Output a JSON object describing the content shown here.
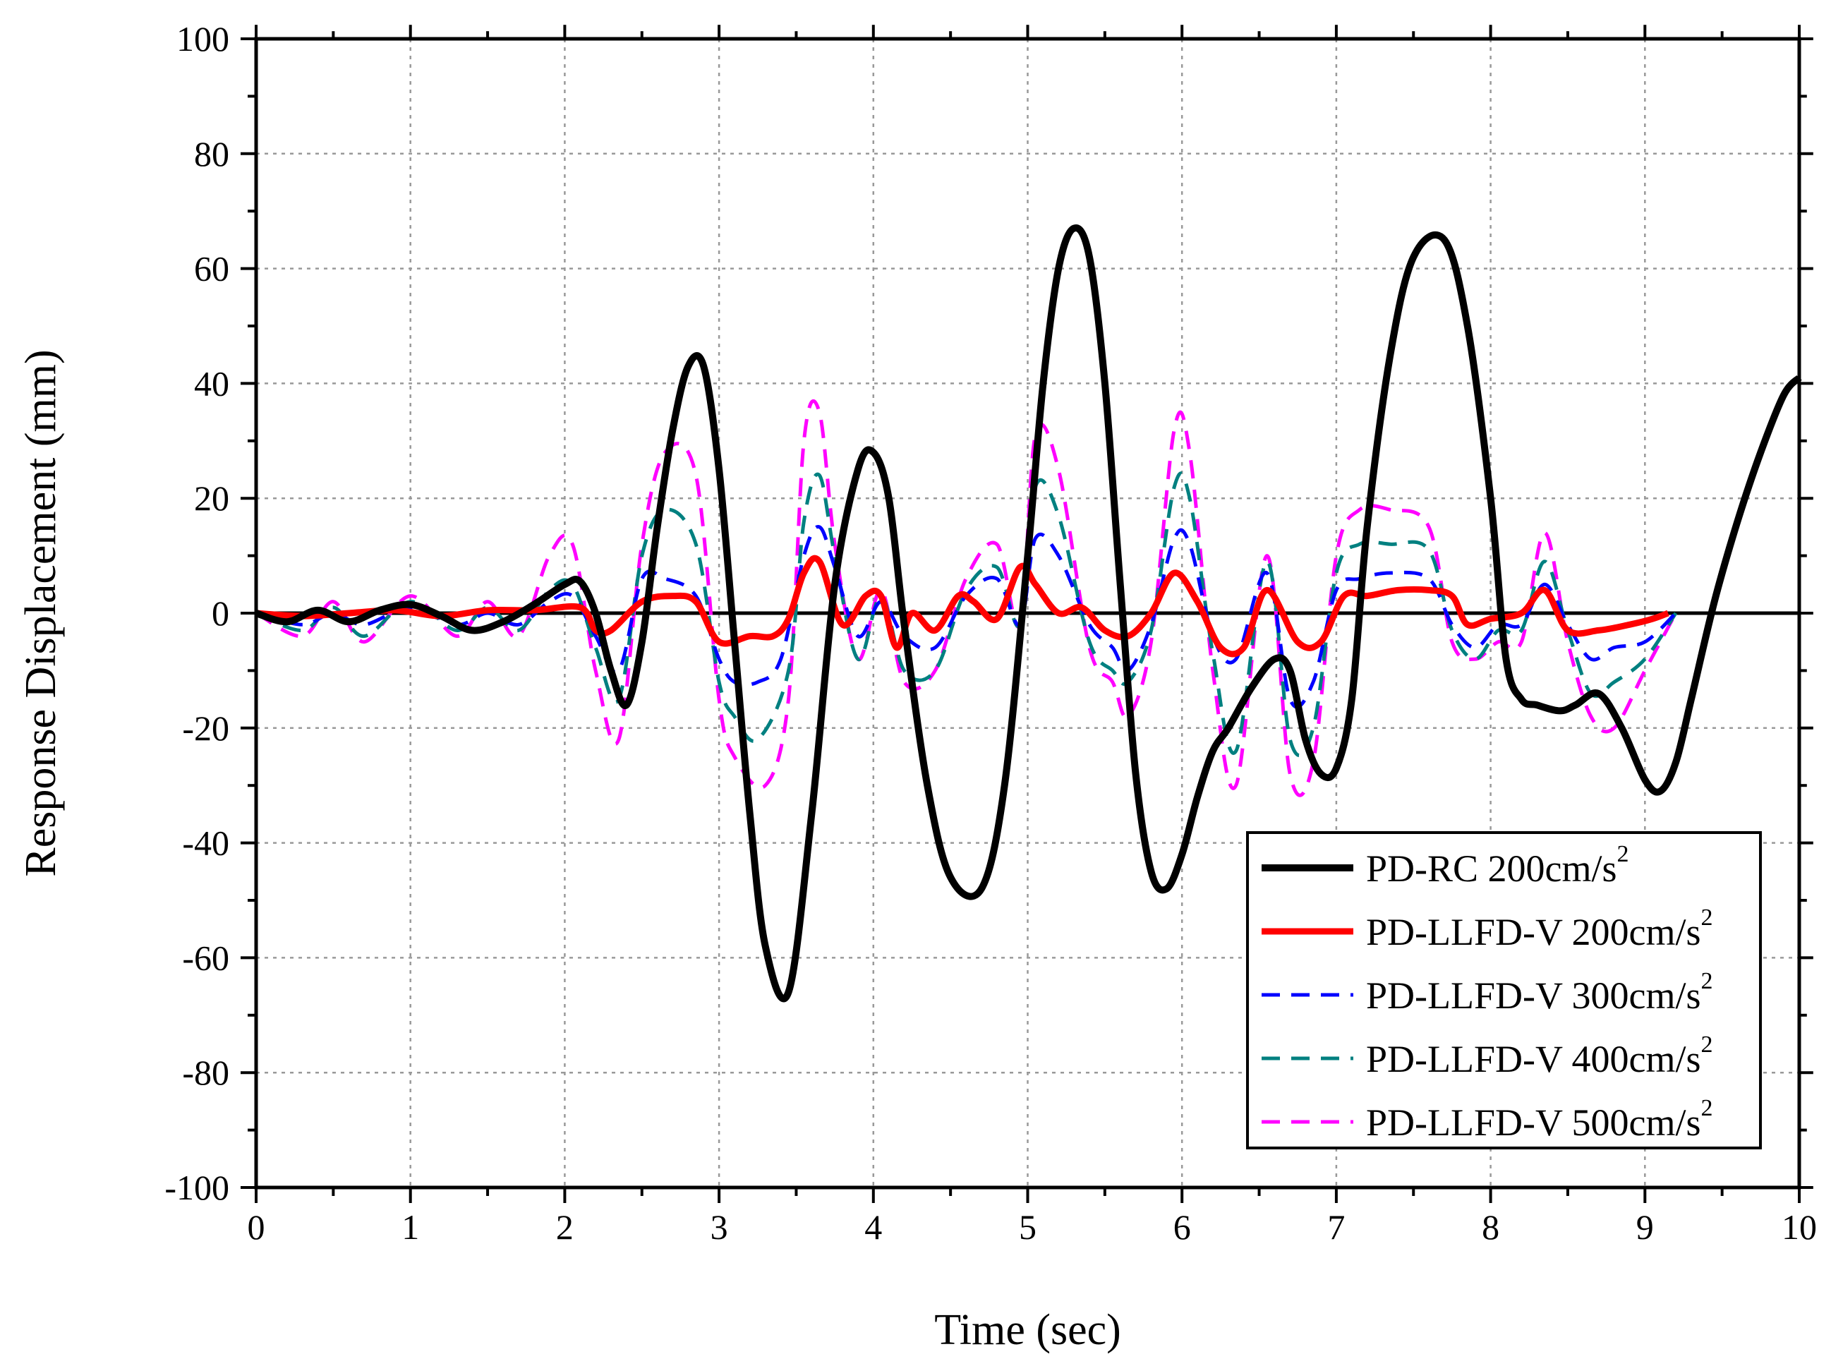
{
  "chart_data": {
    "type": "line",
    "title": "",
    "xlabel": "Time (sec)",
    "ylabel": "Response Displacement (mm)",
    "xlim": [
      0,
      10
    ],
    "ylim": [
      -100,
      100
    ],
    "xticks": [
      0,
      1,
      2,
      3,
      4,
      5,
      6,
      7,
      8,
      9,
      10
    ],
    "yticks": [
      100,
      80,
      60,
      40,
      20,
      0,
      -20,
      -40,
      -60,
      -80,
      -100
    ],
    "grid": true,
    "legend_position": "bottom-right",
    "series": [
      {
        "name": "PD-RC 200cm/s",
        "name_sup": "2",
        "color": "#000000",
        "style": "solid-thick",
        "x": [
          0,
          0.2,
          0.4,
          0.6,
          0.8,
          1.0,
          1.2,
          1.4,
          1.6,
          1.8,
          2.0,
          2.1,
          2.2,
          2.3,
          2.4,
          2.5,
          2.6,
          2.7,
          2.8,
          2.9,
          3.0,
          3.1,
          3.2,
          3.3,
          3.45,
          3.6,
          3.75,
          3.9,
          4.0,
          4.1,
          4.2,
          4.35,
          4.5,
          4.7,
          4.85,
          5.0,
          5.1,
          5.2,
          5.3,
          5.4,
          5.5,
          5.6,
          5.7,
          5.8,
          5.9,
          6.0,
          6.1,
          6.2,
          6.3,
          6.45,
          6.6,
          6.7,
          6.8,
          6.9,
          7.0,
          7.1,
          7.2,
          7.35,
          7.5,
          7.7,
          7.85,
          8.0,
          8.1,
          8.2,
          8.3,
          8.45,
          8.55,
          8.7,
          8.85,
          9.0,
          9.1,
          9.2,
          9.3,
          9.45,
          9.6,
          9.75,
          9.9,
          10.0
        ],
        "y": [
          0,
          -1.5,
          0.5,
          -1.5,
          0.5,
          1.5,
          -0.5,
          -3,
          -1.5,
          1.5,
          5,
          5.5,
          0,
          -10,
          -16,
          -5,
          15,
          32,
          43,
          43,
          25,
          -5,
          -35,
          -58,
          -66,
          -35,
          5,
          25,
          28,
          20,
          -2,
          -30,
          -46,
          -48,
          -30,
          10,
          40,
          60,
          67,
          62,
          40,
          5,
          -28,
          -45,
          -48,
          -42,
          -32,
          -24,
          -20,
          -13,
          -8,
          -10,
          -22,
          -28,
          -27,
          -15,
          15,
          45,
          62,
          65,
          50,
          20,
          -8,
          -15,
          -16,
          -17,
          -16,
          -14,
          -20,
          -29,
          -31,
          -26,
          -15,
          2,
          16,
          28,
          38,
          41
        ]
      },
      {
        "name": "PD-LLFD-V 200cm/s",
        "name_sup": "2",
        "color": "#ff0000",
        "style": "solid-thick",
        "x": [
          0,
          0.3,
          0.6,
          0.9,
          1.2,
          1.5,
          1.8,
          2.1,
          2.2,
          2.3,
          2.5,
          2.7,
          2.85,
          3.0,
          3.2,
          3.35,
          3.45,
          3.55,
          3.65,
          3.8,
          3.95,
          4.05,
          4.15,
          4.25,
          4.4,
          4.55,
          4.65,
          4.8,
          4.95,
          5.05,
          5.2,
          5.35,
          5.5,
          5.65,
          5.8,
          5.95,
          6.1,
          6.25,
          6.4,
          6.55,
          6.75,
          6.9,
          7.05,
          7.2,
          7.4,
          7.6,
          7.75,
          7.85,
          8.0,
          8.2,
          8.35,
          8.5,
          8.7,
          8.9,
          9.05,
          9.15
        ],
        "y": [
          0,
          -0.5,
          0,
          0.5,
          -0.5,
          0.5,
          0.5,
          1,
          -3,
          -3,
          2,
          3,
          2,
          -5,
          -4,
          -4,
          -1,
          7,
          9,
          -2,
          3,
          3,
          -6,
          0,
          -3,
          3,
          2,
          -1,
          8,
          5,
          0,
          1,
          -3,
          -4,
          0,
          7,
          2,
          -6,
          -6,
          4,
          -5,
          -5,
          3,
          3,
          4,
          4,
          3,
          -2,
          -1,
          0,
          4,
          -3,
          -3,
          -2,
          -1,
          0
        ]
      },
      {
        "name": "PD-LLFD-V 300cm/s",
        "name_sup": "2",
        "color": "#0000ff",
        "style": "dashed",
        "x": [
          0,
          0.3,
          0.5,
          0.7,
          1.0,
          1.3,
          1.5,
          1.7,
          1.9,
          2.05,
          2.2,
          2.35,
          2.5,
          2.65,
          2.85,
          3.0,
          3.1,
          3.25,
          3.4,
          3.55,
          3.65,
          3.75,
          3.9,
          4.05,
          4.2,
          4.4,
          4.6,
          4.8,
          4.95,
          5.05,
          5.2,
          5.4,
          5.55,
          5.65,
          5.8,
          5.95,
          6.05,
          6.2,
          6.35,
          6.55,
          6.7,
          6.85,
          7.0,
          7.15,
          7.35,
          7.6,
          7.75,
          7.9,
          8.05,
          8.2,
          8.35,
          8.5,
          8.65,
          8.8,
          9.0,
          9.2
        ],
        "y": [
          0,
          -2,
          0,
          -2,
          1,
          -2,
          0,
          -2,
          2,
          3,
          -4,
          -10,
          6,
          6,
          3,
          -8,
          -12,
          -12,
          -8,
          10,
          15,
          8,
          -4,
          2,
          -4,
          -6,
          3,
          6,
          -2,
          13,
          10,
          -2,
          -6,
          -10,
          -2,
          13,
          12,
          -4,
          -8,
          7,
          -15,
          -12,
          4,
          6,
          7,
          6,
          -2,
          -6,
          -2,
          -2,
          5,
          -2,
          -8,
          -6,
          -5,
          0
        ]
      },
      {
        "name": "PD-LLFD-V 400cm/s",
        "name_sup": "2",
        "color": "#008080",
        "style": "dashed",
        "x": [
          0,
          0.3,
          0.5,
          0.7,
          1.0,
          1.3,
          1.5,
          1.7,
          1.9,
          2.05,
          2.2,
          2.35,
          2.5,
          2.65,
          2.85,
          3.0,
          3.1,
          3.25,
          3.45,
          3.55,
          3.65,
          3.75,
          3.9,
          4.05,
          4.2,
          4.4,
          4.6,
          4.8,
          4.95,
          5.05,
          5.2,
          5.4,
          5.55,
          5.65,
          5.8,
          5.95,
          6.05,
          6.2,
          6.35,
          6.55,
          6.7,
          6.85,
          7.0,
          7.15,
          7.35,
          7.6,
          7.75,
          7.9,
          8.05,
          8.2,
          8.35,
          8.5,
          8.65,
          8.8,
          9.0,
          9.2
        ],
        "y": [
          0,
          -3,
          1,
          -4,
          2,
          -3,
          1,
          -3,
          4,
          5,
          -6,
          -15,
          10,
          18,
          12,
          -12,
          -18,
          -22,
          -10,
          16,
          24,
          10,
          -8,
          3,
          -10,
          -10,
          4,
          8,
          -2,
          22,
          17,
          -5,
          -10,
          -12,
          -3,
          22,
          20,
          -7,
          -24,
          9,
          -22,
          -20,
          7,
          12,
          12,
          11,
          -3,
          -8,
          -3,
          -3,
          9,
          -3,
          -14,
          -12,
          -8,
          0
        ]
      },
      {
        "name": "PD-LLFD-V 500cm/s",
        "name_sup": "2",
        "color": "#ff00ff",
        "style": "dashed",
        "x": [
          0,
          0.3,
          0.5,
          0.7,
          1.0,
          1.3,
          1.5,
          1.7,
          1.9,
          2.05,
          2.2,
          2.35,
          2.5,
          2.65,
          2.85,
          3.0,
          3.1,
          3.3,
          3.45,
          3.55,
          3.65,
          3.75,
          3.9,
          4.05,
          4.2,
          4.4,
          4.6,
          4.8,
          4.95,
          5.05,
          5.2,
          5.4,
          5.55,
          5.65,
          5.8,
          5.95,
          6.05,
          6.2,
          6.35,
          6.55,
          6.7,
          6.85,
          7.0,
          7.15,
          7.35,
          7.6,
          7.75,
          7.9,
          8.05,
          8.2,
          8.35,
          8.5,
          8.65,
          8.8,
          9.0,
          9.2
        ],
        "y": [
          0,
          -4,
          2,
          -5,
          3,
          -4,
          2,
          -4,
          10,
          12,
          -10,
          -22,
          12,
          28,
          24,
          -15,
          -25,
          -30,
          -15,
          30,
          35,
          12,
          -8,
          4,
          -12,
          -10,
          6,
          12,
          -2,
          31,
          25,
          -6,
          -12,
          -18,
          -5,
          32,
          28,
          -10,
          -30,
          10,
          -28,
          -26,
          10,
          18,
          18,
          15,
          -5,
          -8,
          -5,
          -5,
          14,
          -5,
          -18,
          -20,
          -10,
          0
        ]
      }
    ]
  }
}
